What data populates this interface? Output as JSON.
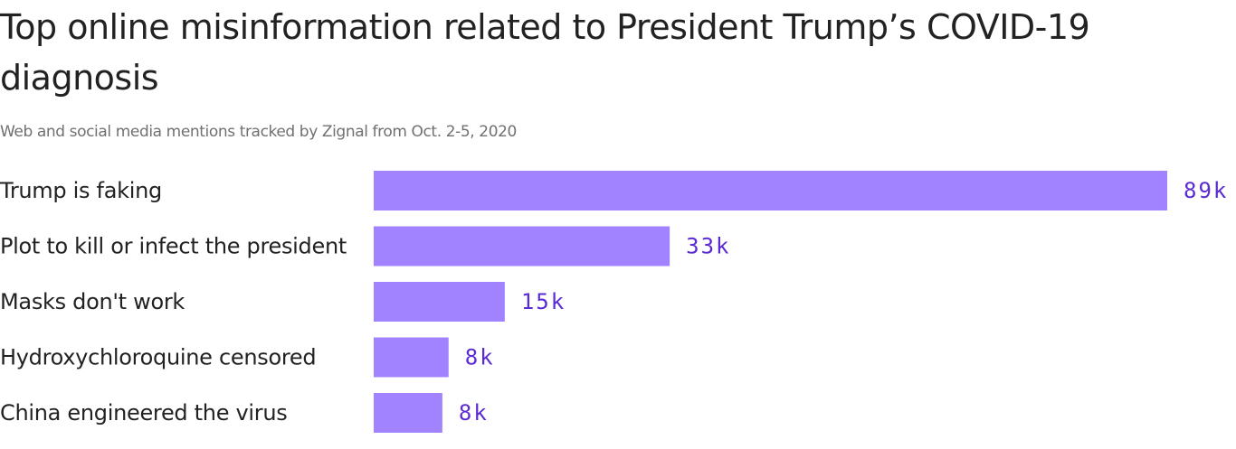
{
  "chart_data": {
    "type": "bar",
    "orientation": "horizontal",
    "title": "Top online misinformation related to President Trump’s COVID-19 diagnosis",
    "subtitle": "Web and social media mentions tracked by Zignal from Oct. 2-5, 2020",
    "categories": [
      "Trump is faking",
      "Plot to kill or infect the president",
      "Masks don't work",
      "Hydroxychloroquine censored",
      "China engineered the virus"
    ],
    "values": [
      89,
      33.2,
      14.7,
      8.4,
      7.7
    ],
    "value_labels": [
      "89k",
      "33k",
      "15k",
      "8k",
      "8k"
    ],
    "color": "#a183ff",
    "label_color": "#5a2ad4"
  }
}
